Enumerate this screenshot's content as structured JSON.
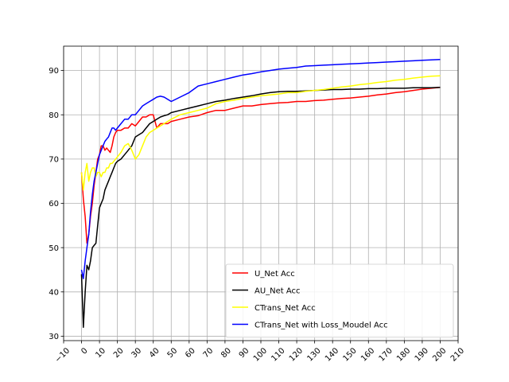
{
  "chart_data": {
    "type": "line",
    "title": "",
    "xlabel": "",
    "ylabel": "",
    "xlim": [
      -10,
      210
    ],
    "ylim": [
      29,
      95.5
    ],
    "x_ticks": [
      -10,
      0,
      10,
      20,
      30,
      40,
      50,
      60,
      70,
      80,
      90,
      100,
      110,
      120,
      130,
      140,
      150,
      160,
      170,
      180,
      190,
      200,
      210
    ],
    "x_tick_labels": [
      "−10",
      "0",
      "10",
      "20",
      "30",
      "40",
      "50",
      "60",
      "70",
      "80",
      "90",
      "100",
      "110",
      "120",
      "130",
      "140",
      "150",
      "160",
      "170",
      "180",
      "190",
      "200",
      "210"
    ],
    "y_ticks": [
      30,
      40,
      50,
      60,
      70,
      80,
      90
    ],
    "y_tick_labels": [
      "30",
      "40",
      "50",
      "60",
      "70",
      "80",
      "90"
    ],
    "grid": true,
    "legend_position": "lower-right",
    "series": [
      {
        "name": "U_Net Acc",
        "color": "#ff0000",
        "points": [
          [
            0,
            67
          ],
          [
            1,
            61
          ],
          [
            2,
            57
          ],
          [
            3,
            51
          ],
          [
            4,
            53
          ],
          [
            5,
            57
          ],
          [
            6,
            60
          ],
          [
            7,
            64
          ],
          [
            8,
            67
          ],
          [
            9,
            70
          ],
          [
            10,
            71
          ],
          [
            11,
            73
          ],
          [
            12,
            73
          ],
          [
            13,
            72
          ],
          [
            14,
            72.5
          ],
          [
            15,
            72
          ],
          [
            16,
            71.5
          ],
          [
            17,
            73
          ],
          [
            18,
            75
          ],
          [
            19,
            76
          ],
          [
            20,
            76.5
          ],
          [
            22,
            76.5
          ],
          [
            24,
            77
          ],
          [
            26,
            77
          ],
          [
            28,
            78
          ],
          [
            30,
            77.5
          ],
          [
            32,
            78.5
          ],
          [
            34,
            79.5
          ],
          [
            36,
            79.5
          ],
          [
            38,
            80
          ],
          [
            40,
            80
          ],
          [
            42,
            77
          ],
          [
            44,
            78
          ],
          [
            46,
            78
          ],
          [
            48,
            78
          ],
          [
            50,
            78.5
          ],
          [
            55,
            79
          ],
          [
            60,
            79.5
          ],
          [
            65,
            79.8
          ],
          [
            70,
            80.5
          ],
          [
            75,
            81
          ],
          [
            80,
            81
          ],
          [
            85,
            81.5
          ],
          [
            90,
            82
          ],
          [
            95,
            82
          ],
          [
            100,
            82.3
          ],
          [
            105,
            82.5
          ],
          [
            110,
            82.7
          ],
          [
            115,
            82.8
          ],
          [
            120,
            83
          ],
          [
            125,
            83
          ],
          [
            130,
            83.2
          ],
          [
            135,
            83.3
          ],
          [
            140,
            83.5
          ],
          [
            145,
            83.7
          ],
          [
            150,
            83.8
          ],
          [
            155,
            84
          ],
          [
            160,
            84.2
          ],
          [
            165,
            84.5
          ],
          [
            170,
            84.7
          ],
          [
            175,
            85
          ],
          [
            180,
            85.2
          ],
          [
            185,
            85.5
          ],
          [
            190,
            85.8
          ],
          [
            195,
            86
          ],
          [
            200,
            86.2
          ]
        ]
      },
      {
        "name": "AU_Net Acc",
        "color": "#000000",
        "points": [
          [
            0,
            44
          ],
          [
            1,
            32
          ],
          [
            2,
            40
          ],
          [
            3,
            46
          ],
          [
            4,
            45
          ],
          [
            5,
            47
          ],
          [
            6,
            50
          ],
          [
            7,
            50.5
          ],
          [
            8,
            51
          ],
          [
            9,
            55
          ],
          [
            10,
            59
          ],
          [
            11,
            60
          ],
          [
            12,
            61
          ],
          [
            13,
            63
          ],
          [
            14,
            64
          ],
          [
            15,
            65
          ],
          [
            16,
            66
          ],
          [
            17,
            67
          ],
          [
            18,
            68
          ],
          [
            19,
            69
          ],
          [
            20,
            69.5
          ],
          [
            22,
            70
          ],
          [
            24,
            71
          ],
          [
            26,
            72
          ],
          [
            28,
            73
          ],
          [
            30,
            75
          ],
          [
            32,
            75.5
          ],
          [
            34,
            76
          ],
          [
            36,
            77
          ],
          [
            38,
            78
          ],
          [
            40,
            78.5
          ],
          [
            42,
            79
          ],
          [
            44,
            79.5
          ],
          [
            46,
            79.8
          ],
          [
            48,
            80
          ],
          [
            50,
            80.5
          ],
          [
            55,
            81
          ],
          [
            60,
            81.5
          ],
          [
            65,
            82
          ],
          [
            70,
            82.5
          ],
          [
            75,
            83
          ],
          [
            80,
            83.3
          ],
          [
            85,
            83.7
          ],
          [
            90,
            84
          ],
          [
            95,
            84.3
          ],
          [
            100,
            84.7
          ],
          [
            105,
            85
          ],
          [
            110,
            85.2
          ],
          [
            115,
            85.3
          ],
          [
            120,
            85.3
          ],
          [
            125,
            85.4
          ],
          [
            130,
            85.5
          ],
          [
            135,
            85.6
          ],
          [
            140,
            85.7
          ],
          [
            145,
            85.7
          ],
          [
            150,
            85.8
          ],
          [
            155,
            85.8
          ],
          [
            160,
            85.9
          ],
          [
            165,
            85.9
          ],
          [
            170,
            86
          ],
          [
            175,
            86
          ],
          [
            180,
            86
          ],
          [
            185,
            86.1
          ],
          [
            190,
            86.1
          ],
          [
            195,
            86.1
          ],
          [
            200,
            86.2
          ]
        ]
      },
      {
        "name": "CTrans_Net Acc",
        "color": "#ffff00",
        "points": [
          [
            0,
            67
          ],
          [
            1,
            63
          ],
          [
            2,
            67
          ],
          [
            3,
            69
          ],
          [
            4,
            65
          ],
          [
            5,
            67
          ],
          [
            6,
            68
          ],
          [
            7,
            68
          ],
          [
            8,
            66
          ],
          [
            9,
            67
          ],
          [
            10,
            67
          ],
          [
            11,
            66
          ],
          [
            12,
            67
          ],
          [
            13,
            67
          ],
          [
            14,
            68
          ],
          [
            15,
            68
          ],
          [
            16,
            69
          ],
          [
            17,
            69
          ],
          [
            18,
            69.5
          ],
          [
            19,
            70
          ],
          [
            20,
            70.5
          ],
          [
            22,
            71.5
          ],
          [
            24,
            73
          ],
          [
            26,
            73.5
          ],
          [
            28,
            72
          ],
          [
            30,
            70
          ],
          [
            32,
            71
          ],
          [
            34,
            73
          ],
          [
            36,
            75
          ],
          [
            38,
            76
          ],
          [
            40,
            76.5
          ],
          [
            42,
            77
          ],
          [
            44,
            77.5
          ],
          [
            46,
            78
          ],
          [
            48,
            78.5
          ],
          [
            50,
            79
          ],
          [
            55,
            80
          ],
          [
            60,
            80.5
          ],
          [
            65,
            81
          ],
          [
            70,
            81.5
          ],
          [
            75,
            82.5
          ],
          [
            80,
            83
          ],
          [
            85,
            83.3
          ],
          [
            90,
            83.7
          ],
          [
            95,
            84
          ],
          [
            100,
            84.3
          ],
          [
            105,
            84.5
          ],
          [
            110,
            84.7
          ],
          [
            115,
            85
          ],
          [
            120,
            85
          ],
          [
            125,
            85.3
          ],
          [
            130,
            85.5
          ],
          [
            135,
            85.7
          ],
          [
            140,
            86
          ],
          [
            145,
            86.3
          ],
          [
            150,
            86.5
          ],
          [
            155,
            86.8
          ],
          [
            160,
            87
          ],
          [
            165,
            87.3
          ],
          [
            170,
            87.5
          ],
          [
            175,
            87.8
          ],
          [
            180,
            88
          ],
          [
            185,
            88.3
          ],
          [
            190,
            88.5
          ],
          [
            195,
            88.7
          ],
          [
            200,
            88.8
          ]
        ]
      },
      {
        "name": "CTrans_Net with Loss_Moudel Acc",
        "color": "#0000ff",
        "points": [
          [
            0,
            45
          ],
          [
            1,
            43
          ],
          [
            2,
            47
          ],
          [
            3,
            50
          ],
          [
            4,
            53
          ],
          [
            5,
            58
          ],
          [
            6,
            62
          ],
          [
            7,
            65
          ],
          [
            8,
            67
          ],
          [
            9,
            69
          ],
          [
            10,
            71
          ],
          [
            11,
            72
          ],
          [
            12,
            73
          ],
          [
            13,
            74
          ],
          [
            14,
            74.5
          ],
          [
            15,
            75
          ],
          [
            16,
            76
          ],
          [
            17,
            77
          ],
          [
            18,
            77
          ],
          [
            19,
            76.5
          ],
          [
            20,
            77
          ],
          [
            22,
            78
          ],
          [
            24,
            79
          ],
          [
            26,
            79
          ],
          [
            28,
            80
          ],
          [
            30,
            80
          ],
          [
            32,
            81
          ],
          [
            34,
            82
          ],
          [
            36,
            82.5
          ],
          [
            38,
            83
          ],
          [
            40,
            83.5
          ],
          [
            42,
            84
          ],
          [
            44,
            84.2
          ],
          [
            46,
            84
          ],
          [
            48,
            83.5
          ],
          [
            50,
            83
          ],
          [
            55,
            84
          ],
          [
            60,
            85
          ],
          [
            65,
            86.5
          ],
          [
            70,
            87
          ],
          [
            75,
            87.5
          ],
          [
            80,
            88
          ],
          [
            85,
            88.5
          ],
          [
            90,
            89
          ],
          [
            95,
            89.3
          ],
          [
            100,
            89.7
          ],
          [
            105,
            90
          ],
          [
            110,
            90.3
          ],
          [
            115,
            90.5
          ],
          [
            120,
            90.7
          ],
          [
            125,
            91
          ],
          [
            130,
            91.1
          ],
          [
            135,
            91.2
          ],
          [
            140,
            91.3
          ],
          [
            145,
            91.4
          ],
          [
            150,
            91.5
          ],
          [
            155,
            91.6
          ],
          [
            160,
            91.7
          ],
          [
            165,
            91.8
          ],
          [
            170,
            91.9
          ],
          [
            175,
            92
          ],
          [
            180,
            92.1
          ],
          [
            185,
            92.2
          ],
          [
            190,
            92.3
          ],
          [
            195,
            92.4
          ],
          [
            200,
            92.5
          ]
        ]
      }
    ]
  }
}
